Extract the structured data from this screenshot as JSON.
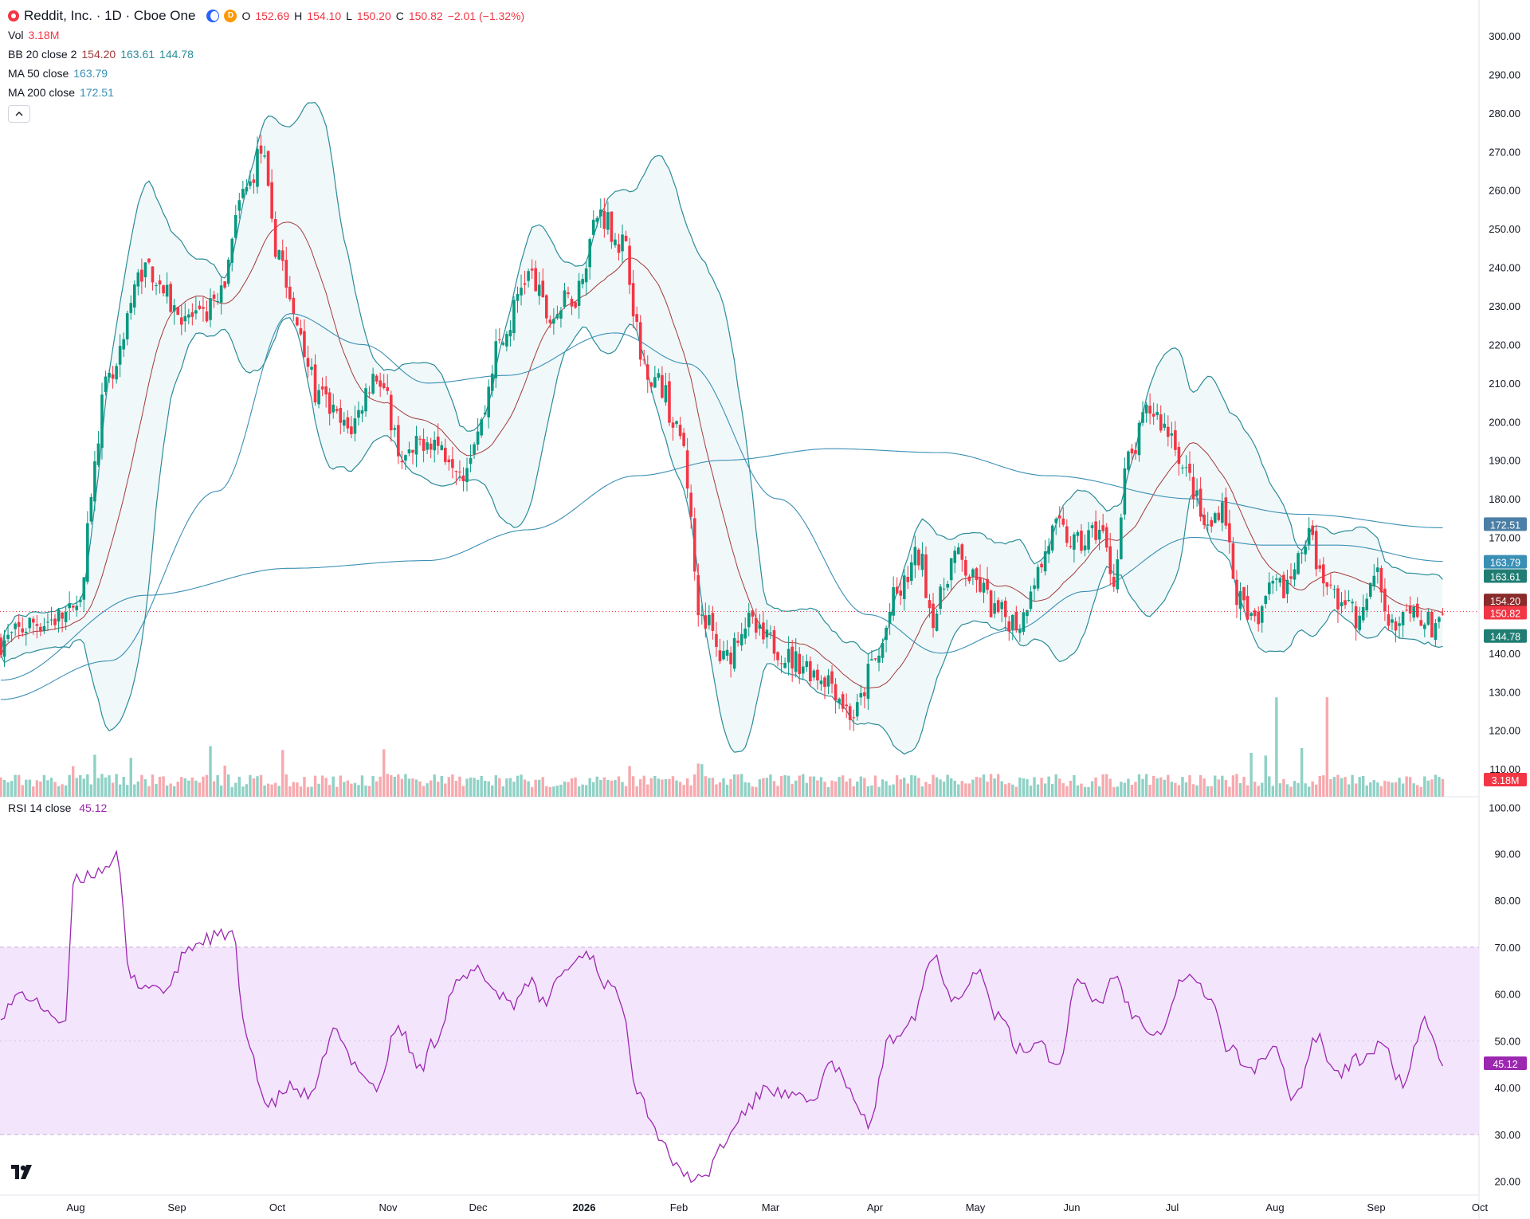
{
  "legend": {
    "symbol": "Reddit, Inc. · 1D · Cboe One",
    "ohlc": {
      "o_label": "O",
      "o": "152.69",
      "h_label": "H",
      "h": "154.10",
      "l_label": "L",
      "l": "150.20",
      "c_label": "C",
      "c": "150.82",
      "change": "−2.01 (−1.32%)"
    },
    "vol": {
      "label": "Vol",
      "value": "3.18M"
    },
    "bb": {
      "label": "BB 20 close 2",
      "basis": "154.20",
      "upper": "163.61",
      "lower": "144.78"
    },
    "ma50": {
      "label": "MA 50 close",
      "value": "163.79"
    },
    "ma200": {
      "label": "MA 200 close",
      "value": "172.51"
    },
    "d_badge": "D",
    "collapse_icon": "chevron-up-icon"
  },
  "rsi_legend": {
    "label": "RSI 14 close",
    "value": "45.12"
  },
  "colors": {
    "up": "#089981",
    "down": "#f23645",
    "bb": "#2a8c99",
    "bb_fill": "#e6f3f4",
    "basis": "#a33a3a",
    "ma": "#3a8fb5",
    "rsi": "#9c27b0",
    "rsi_band": "#f3e5fc"
  },
  "chart_data": {
    "type": "candlestick",
    "price_axis": {
      "ticks": [
        "300.00",
        "290.00",
        "280.00",
        "270.00",
        "260.00",
        "250.00",
        "240.00",
        "230.00",
        "220.00",
        "210.00",
        "200.00",
        "190.00",
        "180.00",
        "170.00",
        "160.00",
        "150.00",
        "140.00",
        "130.00",
        "120.00",
        "110.00",
        "100.00"
      ],
      "range": [
        100,
        300
      ]
    },
    "time_axis": {
      "ticks": [
        "Aug",
        "Sep",
        "Oct",
        "Nov",
        "Dec",
        "2026",
        "Feb",
        "Mar",
        "Apr",
        "May",
        "Jun",
        "Jul",
        "Aug",
        "Sep",
        "Oct"
      ]
    },
    "anchors": [
      [
        0,
        143
      ],
      [
        10,
        148
      ],
      [
        20,
        150
      ],
      [
        30,
        210
      ],
      [
        40,
        240
      ],
      [
        50,
        228
      ],
      [
        55,
        226
      ],
      [
        60,
        232
      ],
      [
        68,
        260
      ],
      [
        72,
        270
      ],
      [
        76,
        246
      ],
      [
        82,
        225
      ],
      [
        88,
        206
      ],
      [
        96,
        198
      ],
      [
        104,
        212
      ],
      [
        112,
        190
      ],
      [
        118,
        196
      ],
      [
        124,
        192
      ],
      [
        128,
        188
      ],
      [
        132,
        198
      ],
      [
        138,
        220
      ],
      [
        146,
        238
      ],
      [
        152,
        227
      ],
      [
        158,
        232
      ],
      [
        166,
        254
      ],
      [
        172,
        246
      ],
      [
        178,
        215
      ],
      [
        182,
        210
      ],
      [
        188,
        196
      ],
      [
        194,
        150
      ],
      [
        200,
        138
      ],
      [
        206,
        148
      ],
      [
        212,
        143
      ],
      [
        220,
        138
      ],
      [
        228,
        134
      ],
      [
        236,
        124
      ],
      [
        242,
        138
      ],
      [
        248,
        155
      ],
      [
        254,
        165
      ],
      [
        258,
        150
      ],
      [
        264,
        165
      ],
      [
        270,
        158
      ],
      [
        276,
        150
      ],
      [
        282,
        148
      ],
      [
        286,
        160
      ],
      [
        292,
        172
      ],
      [
        298,
        168
      ],
      [
        304,
        172
      ],
      [
        308,
        160
      ],
      [
        312,
        190
      ],
      [
        318,
        203
      ],
      [
        324,
        197
      ],
      [
        328,
        186
      ],
      [
        334,
        172
      ],
      [
        338,
        179
      ],
      [
        342,
        155
      ],
      [
        346,
        148
      ],
      [
        352,
        156
      ],
      [
        356,
        158
      ],
      [
        362,
        170
      ],
      [
        366,
        158
      ],
      [
        372,
        153
      ],
      [
        376,
        148
      ],
      [
        380,
        160
      ],
      [
        386,
        147
      ],
      [
        392,
        150
      ],
      [
        396,
        147
      ],
      [
        399,
        151
      ]
    ],
    "ma200_anchors": [
      [
        0,
        133
      ],
      [
        40,
        155
      ],
      [
        80,
        162
      ],
      [
        118,
        164
      ],
      [
        146,
        172
      ],
      [
        176,
        186
      ],
      [
        200,
        190
      ],
      [
        230,
        193
      ],
      [
        260,
        192
      ],
      [
        290,
        186
      ],
      [
        330,
        180
      ],
      [
        360,
        176
      ],
      [
        399,
        172.5
      ]
    ],
    "ma50_anchors": [
      [
        0,
        128
      ],
      [
        30,
        138
      ],
      [
        60,
        182
      ],
      [
        80,
        228
      ],
      [
        100,
        220
      ],
      [
        118,
        210
      ],
      [
        140,
        212
      ],
      [
        170,
        223
      ],
      [
        190,
        215
      ],
      [
        215,
        180
      ],
      [
        240,
        150
      ],
      [
        260,
        140
      ],
      [
        280,
        146
      ],
      [
        300,
        156
      ],
      [
        330,
        170
      ],
      [
        350,
        168
      ],
      [
        370,
        168
      ],
      [
        399,
        163.8
      ]
    ],
    "volume_axis_label": "3.18M",
    "rsi": {
      "ticks": [
        "90.00",
        "80.00",
        "70.00",
        "60.00",
        "50.00",
        "40.00",
        "30.00",
        "20.00"
      ],
      "range": [
        15,
        95
      ],
      "band": [
        30,
        70
      ],
      "last": "45.12",
      "anchors": [
        [
          0,
          56
        ],
        [
          6,
          60
        ],
        [
          12,
          57
        ],
        [
          18,
          53
        ],
        [
          20,
          84
        ],
        [
          26,
          86
        ],
        [
          32,
          89
        ],
        [
          36,
          63
        ],
        [
          40,
          62
        ],
        [
          46,
          61
        ],
        [
          52,
          70
        ],
        [
          58,
          72
        ],
        [
          64,
          73
        ],
        [
          68,
          50
        ],
        [
          74,
          36
        ],
        [
          80,
          40
        ],
        [
          86,
          38
        ],
        [
          92,
          52
        ],
        [
          98,
          45
        ],
        [
          104,
          40
        ],
        [
          110,
          53
        ],
        [
          116,
          44
        ],
        [
          120,
          50
        ],
        [
          126,
          62
        ],
        [
          132,
          65
        ],
        [
          138,
          60
        ],
        [
          142,
          58
        ],
        [
          146,
          63
        ],
        [
          150,
          58
        ],
        [
          156,
          65
        ],
        [
          162,
          69
        ],
        [
          168,
          62
        ],
        [
          172,
          58
        ],
        [
          176,
          40
        ],
        [
          182,
          30
        ],
        [
          188,
          22
        ],
        [
          194,
          20
        ],
        [
          200,
          28
        ],
        [
          206,
          35
        ],
        [
          212,
          40
        ],
        [
          218,
          38
        ],
        [
          224,
          37
        ],
        [
          230,
          45
        ],
        [
          236,
          38
        ],
        [
          240,
          32
        ],
        [
          246,
          50
        ],
        [
          252,
          55
        ],
        [
          258,
          68
        ],
        [
          264,
          59
        ],
        [
          270,
          65
        ],
        [
          276,
          55
        ],
        [
          282,
          48
        ],
        [
          288,
          50
        ],
        [
          292,
          44
        ],
        [
          298,
          62
        ],
        [
          304,
          58
        ],
        [
          308,
          64
        ],
        [
          314,
          55
        ],
        [
          320,
          52
        ],
        [
          328,
          64
        ],
        [
          334,
          60
        ],
        [
          340,
          48
        ],
        [
          346,
          44
        ],
        [
          352,
          48
        ],
        [
          358,
          38
        ],
        [
          364,
          51
        ],
        [
          370,
          43
        ],
        [
          376,
          46
        ],
        [
          382,
          49
        ],
        [
          388,
          41
        ],
        [
          394,
          54
        ],
        [
          399,
          45
        ]
      ]
    }
  }
}
